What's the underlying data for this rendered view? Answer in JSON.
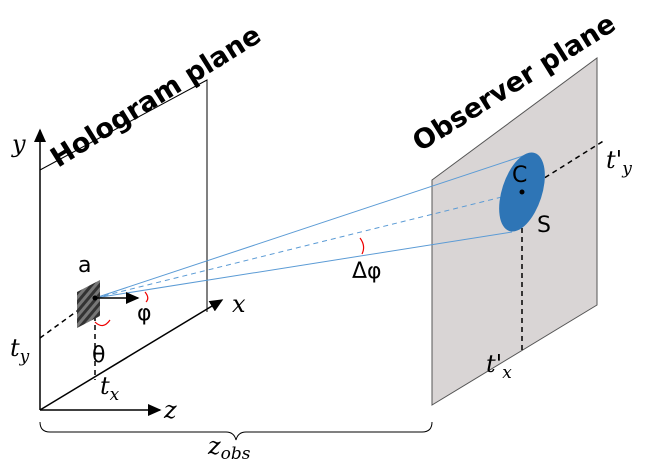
{
  "hologram_plane": {
    "title": "Hologram plane"
  },
  "observer_plane": {
    "title": "Observer plane"
  },
  "axes": {
    "y": "y",
    "x": "x",
    "z": "z"
  },
  "labels": {
    "ty": {
      "main": "t",
      "sub": "y"
    },
    "tx": {
      "main": "t",
      "sub": "x"
    },
    "tpy": {
      "main": "t'",
      "sub": "y"
    },
    "tpx": {
      "main": "t'",
      "sub": "x"
    },
    "a": "a",
    "phi": "φ",
    "theta": "θ",
    "dphi": "Δφ",
    "c": "C",
    "s": "S",
    "zobs": {
      "main": "z",
      "sub": "obs"
    }
  }
}
